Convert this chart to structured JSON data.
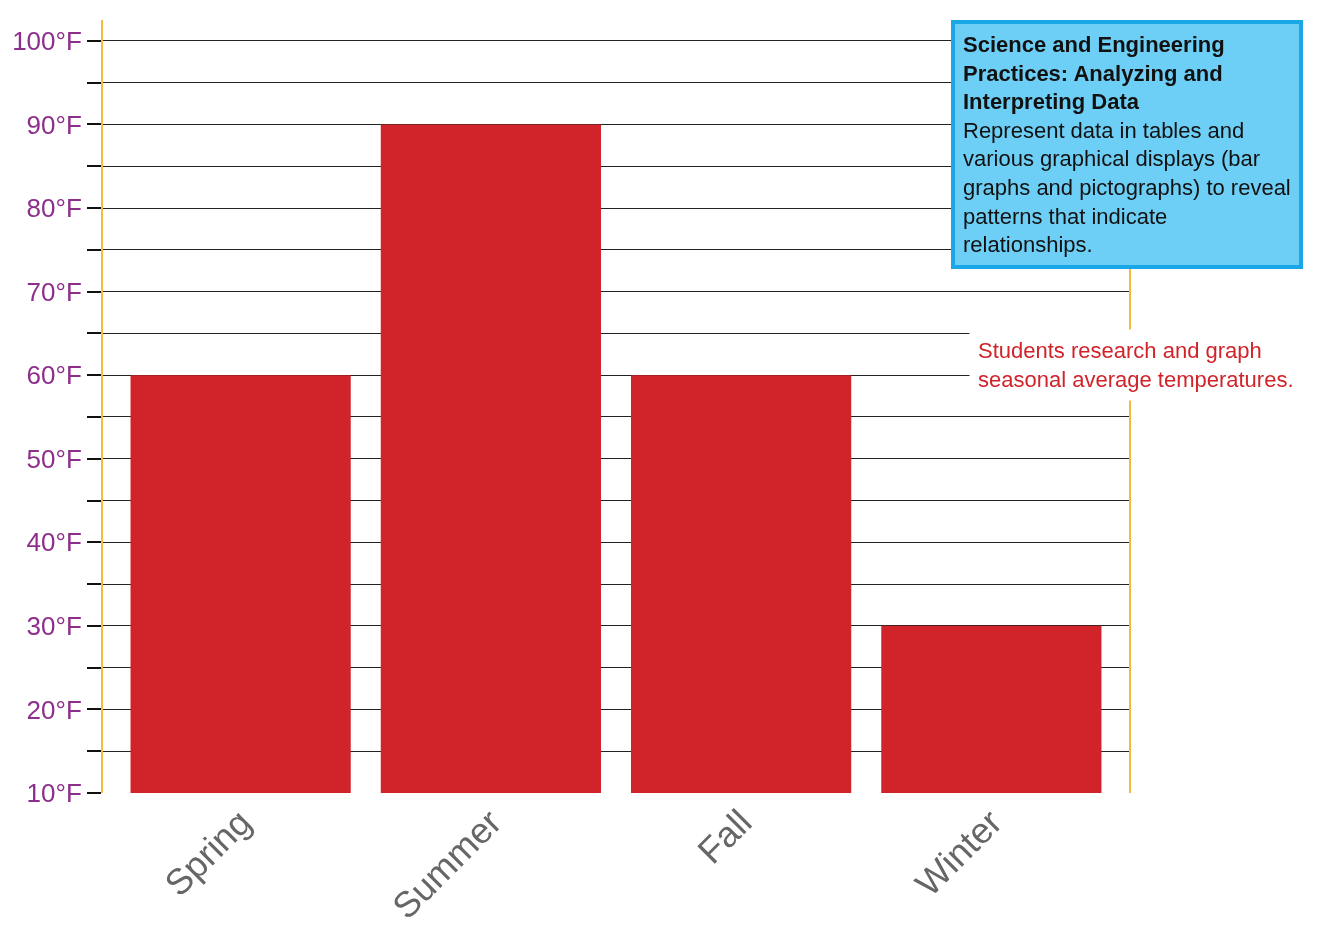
{
  "chart_data": {
    "type": "bar",
    "categories": [
      "Spring",
      "Summer",
      "Fall",
      "Winter"
    ],
    "series": [
      {
        "color": "#d0232a",
        "values": [
          60,
          90,
          60,
          30
        ]
      }
    ],
    "ylim": [
      10,
      102.5
    ],
    "yticks": [
      {
        "value": 10,
        "label": "10°F"
      },
      {
        "value": 15,
        "label": null
      },
      {
        "value": 20,
        "label": "20°F"
      },
      {
        "value": 25,
        "label": null
      },
      {
        "value": 30,
        "label": "30°F"
      },
      {
        "value": 35,
        "label": null
      },
      {
        "value": 40,
        "label": "40°F"
      },
      {
        "value": 45,
        "label": null
      },
      {
        "value": 50,
        "label": "50°F"
      },
      {
        "value": 55,
        "label": null
      },
      {
        "value": 60,
        "label": "60°F"
      },
      {
        "value": 65,
        "label": null
      },
      {
        "value": 70,
        "label": "70°F"
      },
      {
        "value": 75,
        "label": null
      },
      {
        "value": 80,
        "label": "80°F"
      },
      {
        "value": 85,
        "label": null
      },
      {
        "value": 90,
        "label": "90°F"
      },
      {
        "value": 95,
        "label": null
      },
      {
        "value": 100,
        "label": "100°F"
      }
    ],
    "grid": "y",
    "annotations": [
      "Science and Engineering Practices: Analyzing and Interpreting Data",
      "Represent data in tables and various graphical displays (bar graphs and pictographs) to reveal patterns that indicate relationships.",
      "Students research and graph seasonal average temperatures."
    ]
  }
}
